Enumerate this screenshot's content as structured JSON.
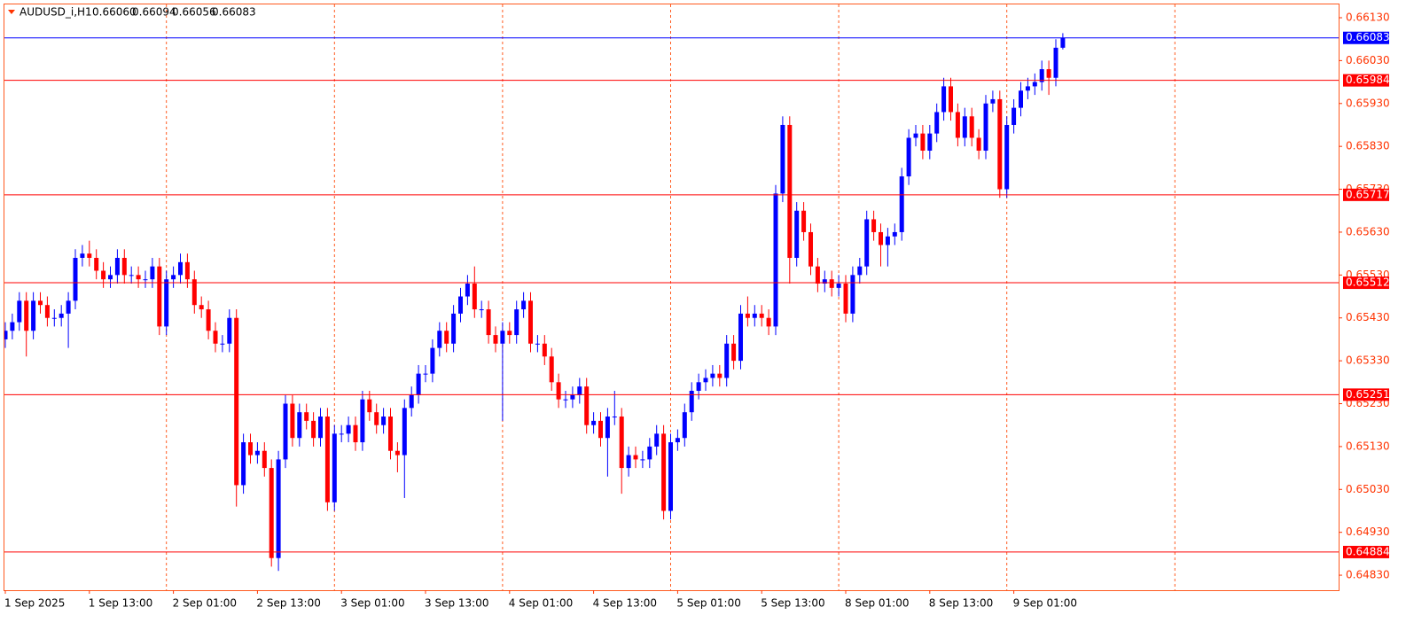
{
  "chart_data": {
    "type": "candlestick",
    "title": "AUDUSD_i,H1",
    "ohlc_labels": [
      "0.66060",
      "0.66094",
      "0.66056",
      "0.66083"
    ],
    "up_color": "#0000ff",
    "down_color": "#ff0000",
    "grid": true,
    "ylim": [
      0.64795,
      0.66161
    ],
    "yticks": [
      {
        "value": 0.6613,
        "label": "0.66130"
      },
      {
        "value": 0.6603,
        "label": "0.66030"
      },
      {
        "value": 0.6593,
        "label": "0.65930"
      },
      {
        "value": 0.6583,
        "label": "0.65830"
      },
      {
        "value": 0.6573,
        "label": "0.65730"
      },
      {
        "value": 0.6563,
        "label": "0.65630"
      },
      {
        "value": 0.6553,
        "label": "0.65530"
      },
      {
        "value": 0.6543,
        "label": "0.65430"
      },
      {
        "value": 0.6533,
        "label": "0.65330"
      },
      {
        "value": 0.6523,
        "label": "0.65230"
      },
      {
        "value": 0.6513,
        "label": "0.65130"
      },
      {
        "value": 0.6503,
        "label": "0.65030"
      },
      {
        "value": 0.6493,
        "label": "0.64930"
      },
      {
        "value": 0.6483,
        "label": "0.64830"
      }
    ],
    "xticks": [
      {
        "value": 0,
        "label": "1 Sep 2025"
      },
      {
        "value": 12,
        "label": "1 Sep 13:00"
      },
      {
        "value": 24,
        "label": "2 Sep 01:00"
      },
      {
        "value": 36,
        "label": "2 Sep 13:00"
      },
      {
        "value": 48,
        "label": "3 Sep 01:00"
      },
      {
        "value": 60,
        "label": "3 Sep 13:00"
      },
      {
        "value": 72,
        "label": "4 Sep 01:00"
      },
      {
        "value": 84,
        "label": "4 Sep 13:00"
      },
      {
        "value": 96,
        "label": "5 Sep 01:00"
      },
      {
        "value": 108,
        "label": "5 Sep 13:00"
      },
      {
        "value": 120,
        "label": "8 Sep 01:00"
      },
      {
        "value": 132,
        "label": "8 Sep 13:00"
      },
      {
        "value": 144,
        "label": "9 Sep 01:00"
      }
    ],
    "levels": [
      0.65984,
      0.65717,
      0.65512,
      0.65251,
      0.64884
    ],
    "levels_color": "#ff0000",
    "bid": 0.66083,
    "bid_color": "#0000ff",
    "open": [
      0.6538,
      0.654,
      0.6542,
      0.6547,
      0.654,
      0.6547,
      0.6546,
      0.6543,
      0.6543,
      0.6544,
      0.6547,
      0.6557,
      0.6558,
      0.6557,
      0.6554,
      0.6552,
      0.6553,
      0.6557,
      0.6553,
      0.6553,
      0.6552,
      0.6552,
      0.6555,
      0.6541,
      0.6552,
      0.6553,
      0.6556,
      0.6552,
      0.6546,
      0.6545,
      0.654,
      0.6537,
      0.6537,
      0.6543,
      0.6504,
      0.6514,
      0.6511,
      0.6512,
      0.6508,
      0.6487,
      0.651,
      0.6523,
      0.6515,
      0.6521,
      0.6519,
      0.6515,
      0.652,
      0.65,
      0.6516,
      0.6516,
      0.6518,
      0.6514,
      0.6524,
      0.6521,
      0.6518,
      0.652,
      0.6512,
      0.6511,
      0.6522,
      0.6525,
      0.653,
      0.653,
      0.6536,
      0.654,
      0.6537,
      0.6544,
      0.6548,
      0.6551,
      0.6545,
      0.6545,
      0.6539,
      0.6537,
      0.654,
      0.6539,
      0.6545,
      0.6547,
      0.6537,
      0.6537,
      0.6534,
      0.6528,
      0.6524,
      0.6524,
      0.6525,
      0.6527,
      0.6518,
      0.6519,
      0.6515,
      0.652,
      0.652,
      0.6508,
      0.6511,
      0.651,
      0.651,
      0.6513,
      0.6516,
      0.6498,
      0.6514,
      0.6515,
      0.6521,
      0.6526,
      0.6528,
      0.6529,
      0.653,
      0.6529,
      0.6537,
      0.6533,
      0.6544,
      0.6543,
      0.6544,
      0.6543,
      0.6541,
      0.6572,
      0.6588,
      0.6557,
      0.6568,
      0.6563,
      0.6555,
      0.6551,
      0.6552,
      0.655,
      0.6551,
      0.6544,
      0.6553,
      0.6555,
      0.6566,
      0.6563,
      0.656,
      0.6562,
      0.6563,
      0.6576,
      0.6585,
      0.6586,
      0.6582,
      0.6586,
      0.6591,
      0.6597,
      0.6591,
      0.6585,
      0.659,
      0.6585,
      0.6582,
      0.6593,
      0.6594,
      0.6573,
      0.6588,
      0.6592,
      0.6596,
      0.6597,
      0.6598,
      0.6601,
      0.6599,
      0.6606
    ],
    "high": [
      0.6542,
      0.6544,
      0.6549,
      0.6549,
      0.6549,
      0.6549,
      0.6548,
      0.6545,
      0.6546,
      0.6549,
      0.6559,
      0.656,
      0.6561,
      0.6559,
      0.6556,
      0.6555,
      0.6559,
      0.6559,
      0.6555,
      0.6555,
      0.6554,
      0.6557,
      0.6557,
      0.6554,
      0.6555,
      0.6558,
      0.6558,
      0.6554,
      0.6548,
      0.6547,
      0.6542,
      0.6539,
      0.6545,
      0.6545,
      0.6516,
      0.6516,
      0.6514,
      0.6514,
      0.651,
      0.6512,
      0.6525,
      0.6525,
      0.6523,
      0.6523,
      0.6521,
      0.6522,
      0.6522,
      0.6518,
      0.6518,
      0.652,
      0.652,
      0.6526,
      0.6526,
      0.6523,
      0.6522,
      0.6522,
      0.6514,
      0.6524,
      0.6527,
      0.6532,
      0.6532,
      0.6538,
      0.6542,
      0.6542,
      0.6546,
      0.655,
      0.6553,
      0.6555,
      0.6547,
      0.6547,
      0.6541,
      0.6542,
      0.6542,
      0.6547,
      0.6549,
      0.6549,
      0.6539,
      0.6539,
      0.6536,
      0.653,
      0.6526,
      0.6527,
      0.6529,
      0.6529,
      0.6521,
      0.6521,
      0.6522,
      0.6526,
      0.6522,
      0.6513,
      0.6513,
      0.6512,
      0.6515,
      0.6518,
      0.6518,
      0.6516,
      0.6517,
      0.6523,
      0.6528,
      0.653,
      0.6531,
      0.6532,
      0.6532,
      0.6539,
      0.6539,
      0.6546,
      0.6548,
      0.6546,
      0.6546,
      0.6545,
      0.6574,
      0.659,
      0.659,
      0.657,
      0.657,
      0.6565,
      0.6557,
      0.6554,
      0.6554,
      0.6553,
      0.6553,
      0.6555,
      0.6557,
      0.6568,
      0.6568,
      0.6565,
      0.6564,
      0.6565,
      0.6578,
      0.6587,
      0.6588,
      0.6588,
      0.6588,
      0.6593,
      0.6599,
      0.6599,
      0.6593,
      0.6592,
      0.6592,
      0.6587,
      0.6595,
      0.6596,
      0.6596,
      0.659,
      0.6594,
      0.6598,
      0.6599,
      0.66,
      0.6603,
      0.6603,
      0.6608,
      0.66094
    ],
    "low": [
      0.6536,
      0.6538,
      0.654,
      0.6534,
      0.6538,
      0.6544,
      0.6541,
      0.6541,
      0.6541,
      0.6536,
      0.6545,
      0.6555,
      0.6555,
      0.6552,
      0.655,
      0.655,
      0.6551,
      0.6551,
      0.6551,
      0.655,
      0.655,
      0.655,
      0.6539,
      0.6539,
      0.655,
      0.6551,
      0.655,
      0.6544,
      0.6543,
      0.6538,
      0.6535,
      0.6535,
      0.6535,
      0.6499,
      0.6502,
      0.6509,
      0.6509,
      0.6506,
      0.6485,
      0.6484,
      0.6508,
      0.6513,
      0.6513,
      0.6517,
      0.6513,
      0.6513,
      0.6498,
      0.6498,
      0.6514,
      0.6514,
      0.6512,
      0.6512,
      0.6519,
      0.6516,
      0.6516,
      0.651,
      0.6507,
      0.6501,
      0.652,
      0.6523,
      0.6528,
      0.6528,
      0.6534,
      0.6535,
      0.6535,
      0.6542,
      0.6546,
      0.6543,
      0.6543,
      0.6537,
      0.6535,
      0.6519,
      0.6537,
      0.6537,
      0.6543,
      0.6535,
      0.6535,
      0.6532,
      0.6526,
      0.6522,
      0.6522,
      0.6522,
      0.6523,
      0.6516,
      0.6516,
      0.6513,
      0.6506,
      0.6518,
      0.6502,
      0.6506,
      0.6508,
      0.6508,
      0.6508,
      0.6511,
      0.6496,
      0.6496,
      0.6512,
      0.6513,
      0.6519,
      0.6524,
      0.6526,
      0.6527,
      0.6527,
      0.6527,
      0.6531,
      0.6531,
      0.6541,
      0.6541,
      0.6541,
      0.6539,
      0.6539,
      0.657,
      0.6551,
      0.6555,
      0.6561,
      0.6553,
      0.6549,
      0.6549,
      0.6548,
      0.6548,
      0.6542,
      0.6542,
      0.6551,
      0.6553,
      0.6561,
      0.6555,
      0.6555,
      0.656,
      0.6561,
      0.6574,
      0.6583,
      0.658,
      0.658,
      0.6584,
      0.6589,
      0.6589,
      0.6583,
      0.6583,
      0.6583,
      0.658,
      0.658,
      0.6591,
      0.6571,
      0.6571,
      0.6586,
      0.659,
      0.6594,
      0.6595,
      0.6596,
      0.6595,
      0.6597,
      0.66056
    ],
    "close": [
      0.654,
      0.6542,
      0.6547,
      0.654,
      0.6547,
      0.6546,
      0.6543,
      0.6543,
      0.6544,
      0.6547,
      0.6557,
      0.6558,
      0.6557,
      0.6554,
      0.6552,
      0.6553,
      0.6557,
      0.6553,
      0.6553,
      0.6552,
      0.6552,
      0.6555,
      0.6541,
      0.6552,
      0.6553,
      0.6556,
      0.6552,
      0.6546,
      0.6545,
      0.654,
      0.6537,
      0.6537,
      0.6543,
      0.6504,
      0.6514,
      0.6511,
      0.6512,
      0.6508,
      0.6487,
      0.651,
      0.6523,
      0.6515,
      0.6521,
      0.6519,
      0.6515,
      0.652,
      0.65,
      0.6516,
      0.6516,
      0.6518,
      0.6514,
      0.6524,
      0.6521,
      0.6518,
      0.652,
      0.6512,
      0.6511,
      0.6522,
      0.6525,
      0.653,
      0.653,
      0.6536,
      0.654,
      0.6537,
      0.6544,
      0.6548,
      0.6551,
      0.6545,
      0.6545,
      0.6539,
      0.6537,
      0.654,
      0.6539,
      0.6545,
      0.6547,
      0.6537,
      0.6537,
      0.6534,
      0.6528,
      0.6524,
      0.6524,
      0.6525,
      0.6527,
      0.6518,
      0.6519,
      0.6515,
      0.652,
      0.652,
      0.6508,
      0.6511,
      0.651,
      0.651,
      0.6513,
      0.6516,
      0.6498,
      0.6514,
      0.6515,
      0.6521,
      0.6526,
      0.6528,
      0.6529,
      0.653,
      0.6529,
      0.6537,
      0.6533,
      0.6544,
      0.6543,
      0.6544,
      0.6543,
      0.6541,
      0.6572,
      0.6588,
      0.6557,
      0.6568,
      0.6563,
      0.6555,
      0.6551,
      0.6552,
      0.655,
      0.6551,
      0.6544,
      0.6553,
      0.6555,
      0.6566,
      0.6563,
      0.656,
      0.6562,
      0.6563,
      0.6576,
      0.6585,
      0.6586,
      0.6582,
      0.6586,
      0.6591,
      0.6597,
      0.6591,
      0.6585,
      0.659,
      0.6585,
      0.6582,
      0.6593,
      0.6594,
      0.6573,
      0.6588,
      0.6592,
      0.6596,
      0.6597,
      0.6598,
      0.6601,
      0.6599,
      0.6606,
      0.66083
    ]
  }
}
